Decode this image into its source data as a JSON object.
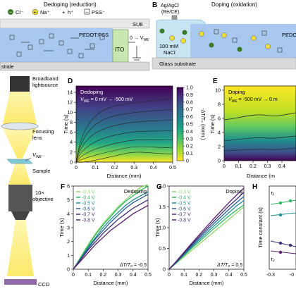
{
  "schematic_top_left": {
    "title": "Dedoping (reduction)",
    "legend": [
      {
        "symbol": "−",
        "label": "Cl⁻"
      },
      {
        "symbol": "+",
        "label": "Na⁺"
      },
      {
        "symbol": "+",
        "label": "h⁺"
      },
      {
        "symbol": "−",
        "label": "PSS⁻"
      }
    ],
    "su8_label": "SU8",
    "pedot_label": "PEDOT:PSS",
    "ito_label": "ITO",
    "voltage_label": "0 → V",
    "voltage_sub": "WE",
    "substrate_label": "strate"
  },
  "panel_b": {
    "letter": "B",
    "electrode_label_1": "Ag/AgCl",
    "electrode_label_2": "(Re/CE)",
    "title": "Doping (oxidation)",
    "electrolyte_1": "100 mM",
    "electrolyte_2": "NaCl",
    "pedot_label": "PEDO",
    "substrate_label": "Glass substrate"
  },
  "optics": {
    "broadband_1": "Broadband",
    "broadband_2": "lightsource",
    "focusing_1": "Focusing",
    "focusing_2": "lens",
    "vwe": "V",
    "vwe_sub": "WE",
    "sample": "Sample",
    "objective_1": "10×",
    "objective_2": "objective",
    "ccd": "CCD"
  },
  "panel_d": {
    "letter": "D",
    "label": "Dedoping",
    "volt_prefix": "V",
    "volt_sub": "WE",
    "volt_text": " = 0 mV → -500 mV",
    "xlabel": "Distance (mm)",
    "ylabel": "Time (s)",
    "xticks": [
      "0",
      "0.1",
      "0.2",
      "0.3",
      "0.4",
      "0.5"
    ],
    "yticks": [
      "0",
      "2",
      "4",
      "6",
      "8",
      "10",
      "12",
      "14"
    ],
    "colorbar_ticks": [
      "0",
      "0.1",
      "0.2",
      "0.3",
      "0.4",
      "0.5",
      "0.6",
      "0.7",
      "0.8",
      "0.9",
      "1.0"
    ],
    "colorbar_label": "-ΔT/T₀ (norm.)"
  },
  "panel_e": {
    "letter": "E",
    "label": "Doping",
    "volt_text": "V",
    "volt_sub": "WE",
    "volt_rest": " = -500 mV → 0 m",
    "ylabel": "Time (s)",
    "xlabel": "Distance (m",
    "xticks": [
      "0",
      "0.1",
      "0.2",
      "0.3",
      "0.4"
    ],
    "yticks": [
      "0",
      "2",
      "4",
      "6",
      "8",
      "10"
    ]
  },
  "panel_f": {
    "letter": "F",
    "label": "Dedoping",
    "annotation": "ΔT/T₀ = -0.5",
    "xlabel": "Distance (mm)",
    "ylabel": "Time (s)",
    "xticks": [
      "0",
      "0.1",
      "0.2",
      "0.3",
      "0.4",
      "0.5"
    ],
    "yticks": [
      "0",
      "1",
      "2",
      "3",
      "4",
      "5",
      "6"
    ],
    "legend": [
      "-0.3 V",
      "-0.4 V",
      "-0.5 V",
      "-0.6 V",
      "-0.7 V",
      "-0.8 V"
    ]
  },
  "panel_g": {
    "letter": "G",
    "label": "Doping",
    "annotation": "ΔT/T₀ = 0.5",
    "xlabel": "Distance (mm)",
    "ylabel": "Time (s)",
    "xticks": [
      "0",
      "0.1",
      "0.2",
      "0.3",
      "0.4",
      "0.5"
    ],
    "yticks": [
      "0",
      "0.5",
      "1.0",
      "1.5",
      "2.0"
    ],
    "legend": [
      "-0.3 V",
      "-0.4 V",
      "-0.5 V",
      "-0.6 V",
      "-0.7 V",
      "-0.8 V"
    ]
  },
  "panel_h": {
    "letter": "H",
    "ylabel": "Time constant (s)",
    "tau1": "τ₁",
    "tau2": "τ₂",
    "xticks": [
      "-0.3",
      "-0"
    ]
  },
  "colors": {
    "series": [
      "#8fd86a",
      "#33b866",
      "#1f8f8f",
      "#2a5c9a",
      "#3b2f7a",
      "#5a1f6a"
    ],
    "pedot": "#a8c8f0",
    "ito": "#c8e6b0",
    "cation": "#f0dc3c",
    "anion": "#3d7a2a"
  },
  "chart_data": [
    {
      "type": "line",
      "panel": "F",
      "title": "Dedoping",
      "xlabel": "Distance (mm)",
      "ylabel": "Time (s)",
      "xlim": [
        0,
        0.5
      ],
      "ylim": [
        0,
        6
      ],
      "x": [
        0,
        0.05,
        0.1,
        0.15,
        0.2,
        0.25,
        0.3,
        0.35,
        0.4,
        0.45,
        0.5
      ],
      "series": [
        {
          "name": "-0.3 V",
          "values": [
            0,
            0.9,
            1.8,
            2.6,
            3.3,
            3.9,
            4.5,
            5.0,
            5.5,
            5.9,
            6.1
          ]
        },
        {
          "name": "-0.4 V",
          "values": [
            0,
            0.85,
            1.7,
            2.5,
            3.2,
            3.8,
            4.4,
            4.9,
            5.3,
            5.7,
            6.0
          ]
        },
        {
          "name": "-0.5 V",
          "values": [
            0,
            0.8,
            1.6,
            2.3,
            3.0,
            3.6,
            4.1,
            4.6,
            5.0,
            5.3,
            5.6
          ]
        },
        {
          "name": "-0.6 V",
          "values": [
            0,
            0.75,
            1.5,
            2.2,
            2.8,
            3.4,
            3.9,
            4.4,
            4.8,
            5.1,
            5.4
          ]
        },
        {
          "name": "-0.7 V",
          "values": [
            0,
            0.7,
            1.4,
            2.0,
            2.6,
            3.1,
            3.6,
            4.0,
            4.4,
            4.7,
            5.0
          ]
        },
        {
          "name": "-0.8 V",
          "values": [
            0,
            0.6,
            1.2,
            1.8,
            2.3,
            2.8,
            3.2,
            3.6,
            4.0,
            4.3,
            4.6
          ]
        }
      ]
    },
    {
      "type": "line",
      "panel": "G",
      "title": "Doping",
      "xlabel": "Distance (mm)",
      "ylabel": "Time (s)",
      "xlim": [
        0,
        0.5
      ],
      "ylim": [
        0,
        2.0
      ],
      "x": [
        0,
        0.05,
        0.1,
        0.15,
        0.2,
        0.25,
        0.3,
        0.35,
        0.4,
        0.45,
        0.5
      ],
      "series": [
        {
          "name": "-0.3 V",
          "values": [
            0,
            0.15,
            0.3,
            0.45,
            0.6,
            0.75,
            0.9,
            1.05,
            1.2,
            1.35,
            1.5
          ]
        },
        {
          "name": "-0.4 V",
          "values": [
            0,
            0.16,
            0.33,
            0.5,
            0.66,
            0.82,
            0.98,
            1.13,
            1.28,
            1.42,
            1.55
          ]
        },
        {
          "name": "-0.5 V",
          "values": [
            0,
            0.17,
            0.35,
            0.53,
            0.7,
            0.87,
            1.04,
            1.2,
            1.36,
            1.52,
            1.65
          ]
        },
        {
          "name": "-0.6 V",
          "values": [
            0,
            0.18,
            0.37,
            0.56,
            0.74,
            0.92,
            1.1,
            1.27,
            1.44,
            1.6,
            1.75
          ]
        },
        {
          "name": "-0.7 V",
          "values": [
            0,
            0.19,
            0.39,
            0.59,
            0.78,
            0.97,
            1.16,
            1.34,
            1.52,
            1.68,
            1.85
          ]
        },
        {
          "name": "-0.8 V",
          "values": [
            0,
            0.2,
            0.41,
            0.62,
            0.82,
            1.02,
            1.22,
            1.41,
            1.6,
            1.78,
            1.95
          ]
        }
      ]
    },
    {
      "type": "heatmap",
      "panel": "D",
      "title": "Dedoping",
      "xlabel": "Distance (mm)",
      "ylabel": "Time (s)",
      "xlim": [
        0,
        0.5
      ],
      "ylim": [
        0,
        15
      ],
      "colorbar_range": [
        0,
        1.0
      ]
    },
    {
      "type": "heatmap",
      "panel": "E",
      "title": "Doping",
      "xlabel": "Distance (mm)",
      "ylabel": "Time (s)",
      "xlim": [
        0,
        0.5
      ],
      "ylim": [
        0,
        10
      ]
    }
  ]
}
